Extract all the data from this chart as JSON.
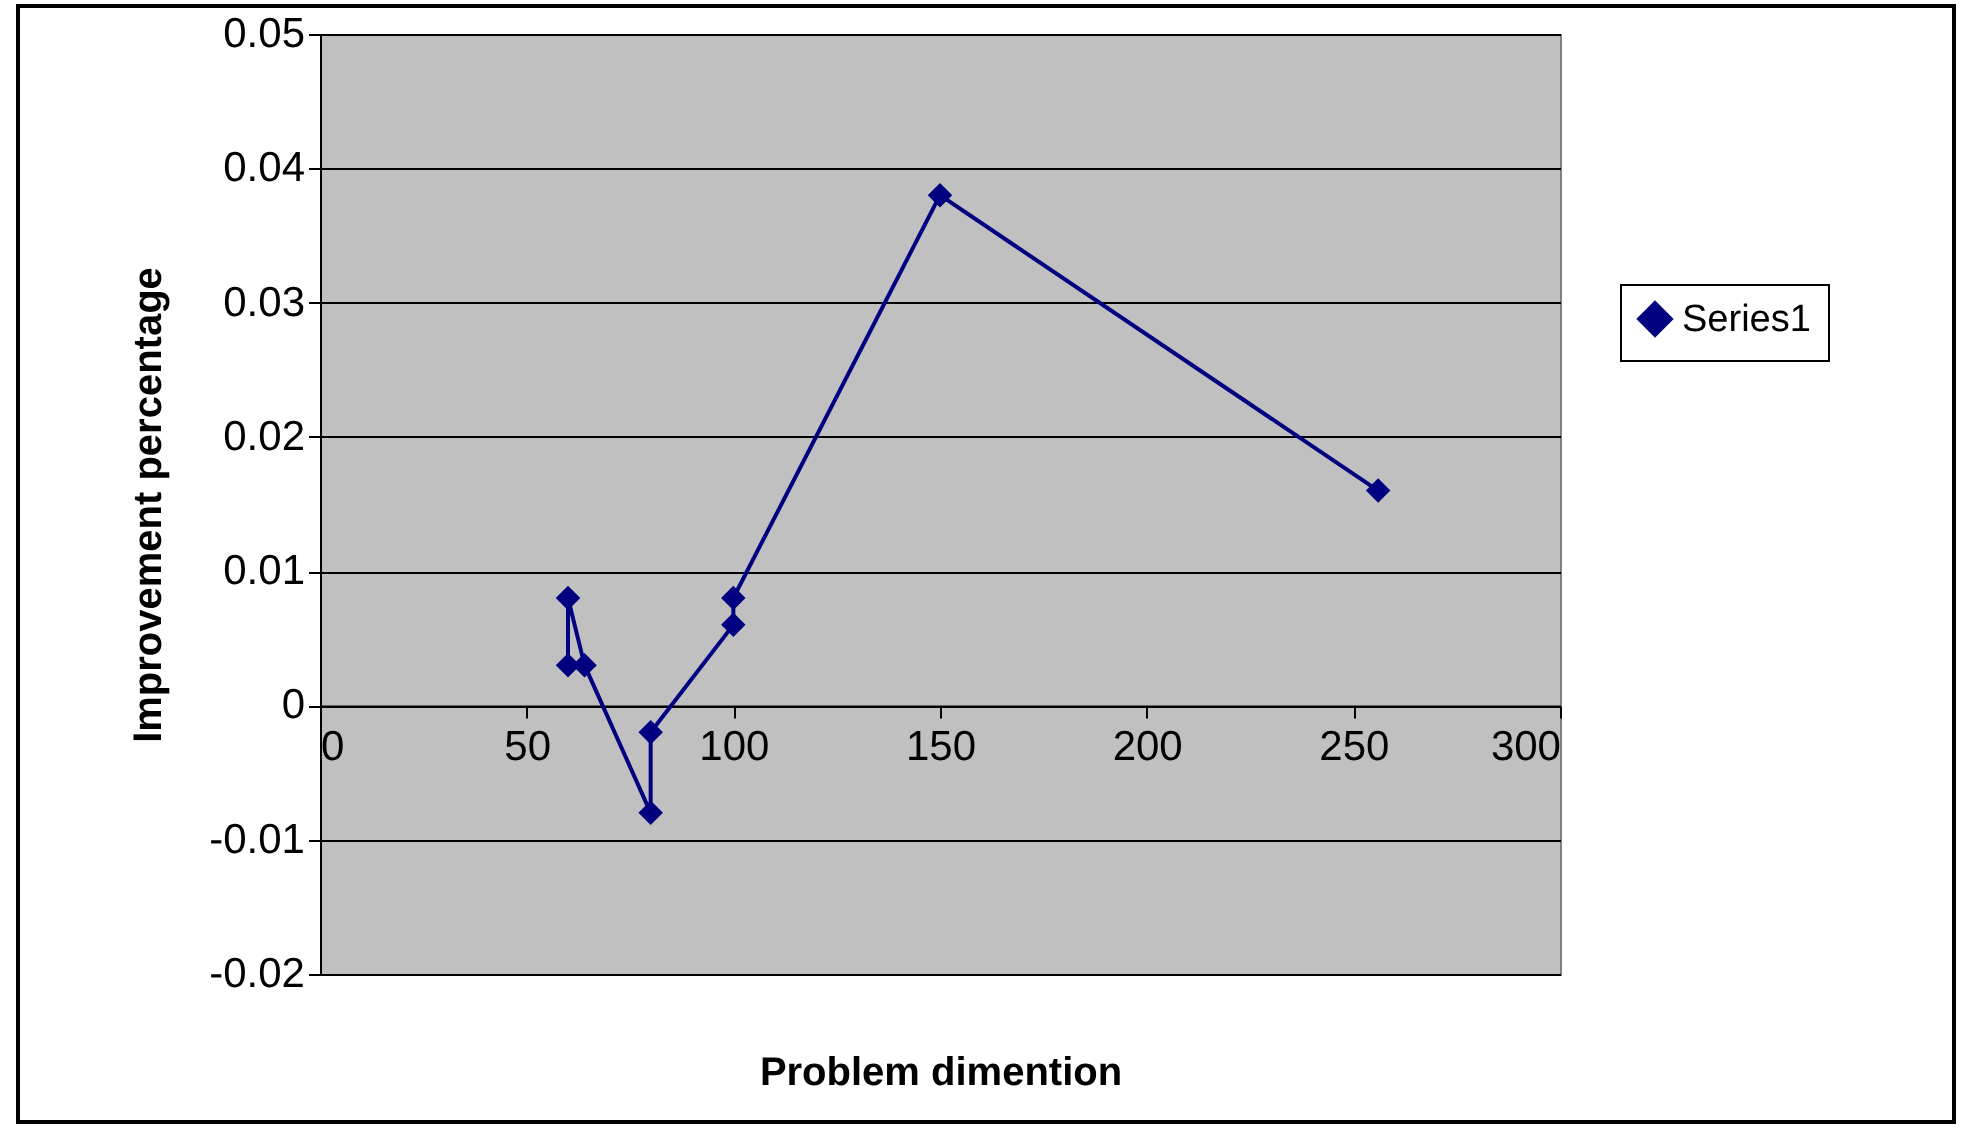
{
  "chart_data": {
    "type": "line",
    "xlabel": "Problem dimention",
    "ylabel": "Improvement percentage",
    "series": [
      {
        "name": "Series1",
        "color": "#000080",
        "x": [
          60,
          60,
          64,
          80,
          80,
          100,
          100,
          150,
          256
        ],
        "values": [
          0.003,
          0.008,
          0.003,
          -0.008,
          -0.002,
          0.006,
          0.008,
          0.038,
          0.016
        ]
      }
    ],
    "xlim": [
      0,
      300
    ],
    "xticks": [
      0,
      50,
      100,
      150,
      200,
      250,
      300
    ],
    "ylim": [
      -0.02,
      0.05
    ],
    "yticks": [
      -0.02,
      -0.01,
      0,
      0.01,
      0.02,
      0.03,
      0.04,
      0.05
    ],
    "grid": "y",
    "legend": "right",
    "marker": "diamond",
    "line_style": "solid"
  }
}
